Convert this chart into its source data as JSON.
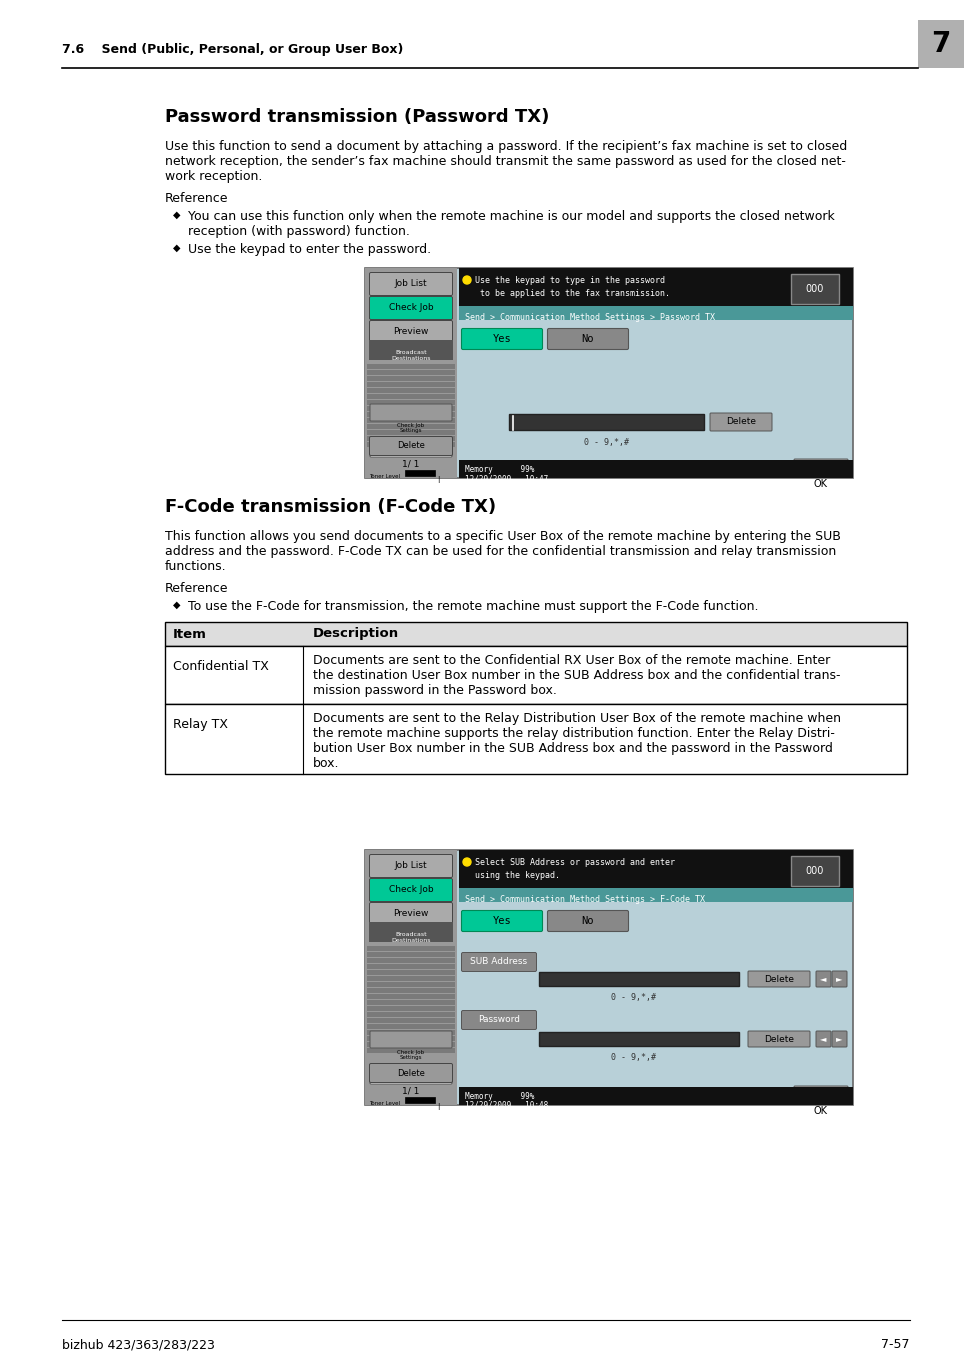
{
  "page_header_section": "7.6    Send (Public, Personal, or Group User Box)",
  "page_number_box": "7",
  "section1_title": "Password transmission (Password TX)",
  "section1_body1": "Use this function to send a document by attaching a password. If the recipient’s fax machine is set to closed",
  "section1_body2": "network reception, the sender’s fax machine should transmit the same password as used for the closed net-",
  "section1_body3": "work reception.",
  "reference_label": "Reference",
  "bullet1_line1": "You can use this function only when the remote machine is our model and supports the closed network",
  "bullet1_line2": "reception (with password) function.",
  "bullet2_text": "Use the keypad to enter the password.",
  "section2_title": "F-Code transmission (F-Code TX)",
  "section2_body1": "This function allows you send documents to a specific User Box of the remote machine by entering the SUB",
  "section2_body2": "address and the password. F-Code TX can be used for the confidential transmission and relay transmission",
  "section2_body3": "functions.",
  "reference2_label": "Reference",
  "bullet3_text": "To use the F-Code for transmission, the remote machine must support the F-Code function.",
  "table_col1": "Item",
  "table_col2": "Description",
  "table_row1_col1": "Confidential TX",
  "table_row1_col2_1": "Documents are sent to the Confidential RX User Box of the remote machine. Enter",
  "table_row1_col2_2": "the destination User Box number in the SUB Address box and the confidential trans-",
  "table_row1_col2_3": "mission password in the Password box.",
  "table_row2_col1": "Relay TX",
  "table_row2_col2_1": "Documents are sent to the Relay Distribution User Box of the remote machine when",
  "table_row2_col2_2": "the remote machine supports the relay distribution function. Enter the Relay Distri-",
  "table_row2_col2_3": "bution User Box number in the SUB Address box and the password in the Password",
  "table_row2_col2_4": "box.",
  "footer_left": "bizhub 423/363/283/223",
  "footer_right": "7-57",
  "screen1_msg1": "Use the keypad to type in the password",
  "screen1_msg2": " to be applied to the fax transmission.",
  "screen1_path": "Send > Communication Method Settings > Password TX",
  "screen1_yes": "Yes",
  "screen1_no": "No",
  "screen1_delete": "Delete",
  "screen1_input_hint": "0 - 9,*,#",
  "screen1_counter": "000",
  "screen1_page": "1/ 1",
  "screen1_datetime": "12/29/2009   10:47",
  "screen1_memory": "Memory      99%",
  "screen2_msg1": "Select SUB Address or password and enter",
  "screen2_msg2": "using the keypad.",
  "screen2_path": "Send > Communication Method Settings > F-Code TX",
  "screen2_yes": "Yes",
  "screen2_no": "No",
  "screen2_sub": "SUB Address",
  "screen2_pass": "Password",
  "screen2_delete": "Delete",
  "screen2_input_hint": "0 - 9,*,#",
  "screen2_counter": "000",
  "screen2_page": "1/ 1",
  "screen2_datetime": "12/29/2009   10:48",
  "screen2_memory": "Memory      99%",
  "screen_bg": "#b8d0d8",
  "left_panel_bg": "#999999",
  "header_bg": "#111111",
  "path_bg": "#4a9898",
  "yes_bg": "#00c896",
  "no_bg": "#888888",
  "joblist_btn": "#aaaaaa",
  "checkjob_btn": "#00c896",
  "preview_btn": "#aaaaaa",
  "bcast_bg": "#555555",
  "input_bg": "#333333",
  "delete_btn": "#999999",
  "ok_btn": "#aaaaaa",
  "counter_bg": "#444444",
  "sublabel_bg": "#888888",
  "bg_color": "#ffffff"
}
